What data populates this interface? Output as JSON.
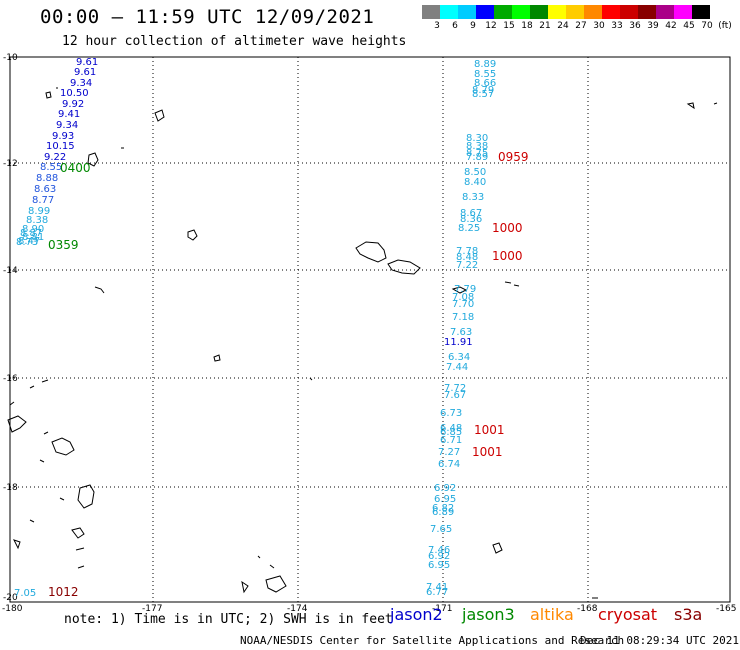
{
  "header": {
    "title": "00:00 – 11:59 UTC 12/09/2021",
    "subtitle": "12 hour collection of altimeter wave heights"
  },
  "scale": {
    "colors": [
      "#808080",
      "#00ffff",
      "#00ccff",
      "#0000ff",
      "#00aa00",
      "#00ff00",
      "#008800",
      "#ffff00",
      "#ffcc00",
      "#ff8800",
      "#ff0000",
      "#cc0000",
      "#880000",
      "#aa0088",
      "#ff00ff",
      "#000000"
    ],
    "labels": [
      "3",
      "6",
      "9",
      "12",
      "15",
      "18",
      "21",
      "24",
      "27",
      "30",
      "33",
      "36",
      "39",
      "42",
      "45",
      "70",
      "(ft)"
    ]
  },
  "axes": {
    "lat_labels": [
      "-10",
      "-12",
      "-14",
      "-16",
      "-18",
      "-20"
    ],
    "lon_labels": [
      "-180",
      "-177",
      "-174",
      "-171",
      "-168",
      "-165"
    ]
  },
  "colors": {
    "jason2": "#0000cc",
    "jason3": "#008800",
    "altika": "#ff8800",
    "cryosat": "#cc0000",
    "s3a": "#880000",
    "cyan": "#22aadd"
  },
  "tracks": {
    "track_left": [
      "9.61",
      "9.61",
      "9.34",
      "10.50",
      "9.92",
      "9.41",
      "9.34",
      "9.93",
      "10.15",
      "9.22",
      "8.55",
      "8.88",
      "8.63",
      "8.77",
      "8.99",
      "8.38",
      "8.90",
      "8.81",
      "8.87",
      "8.47",
      "8.73"
    ],
    "track_right": [
      "8.89",
      "8.55",
      "8.66",
      "8.79",
      "8.57",
      "8.30",
      "8.38",
      "8.75",
      "7.89",
      "8.50",
      "8.40",
      "8.33",
      "8.67",
      "8.36",
      "8.25",
      "7.78",
      "8.48",
      "7.22",
      "7.79",
      "7.08",
      "7.70",
      "7.18",
      "7.63",
      "11.91",
      "6.34",
      "7.44",
      "7.72",
      "7.67",
      "6.73",
      "6.48",
      "6.85",
      "6.71",
      "7.27",
      "6.74",
      "6.92",
      "6.95",
      "6.82",
      "6.89",
      "7.65",
      "7.46",
      "6.92",
      "6.95",
      "7.41",
      "6.77"
    ],
    "extra": "7.05"
  },
  "times": [
    "0400",
    "0359",
    "0959",
    "1000",
    "1000",
    "1001",
    "1001",
    "1012"
  ],
  "footer": {
    "note": "note: 1) Time is in UTC; 2) SWH is in feet",
    "legend": [
      "jason2",
      "jason3",
      "altika",
      "cryosat",
      "s3a"
    ],
    "credit": "NOAA/NESDIS Center for Satellite Applications and Research",
    "timestamp": "Dec 11 08:29:34 UTC 2021"
  }
}
